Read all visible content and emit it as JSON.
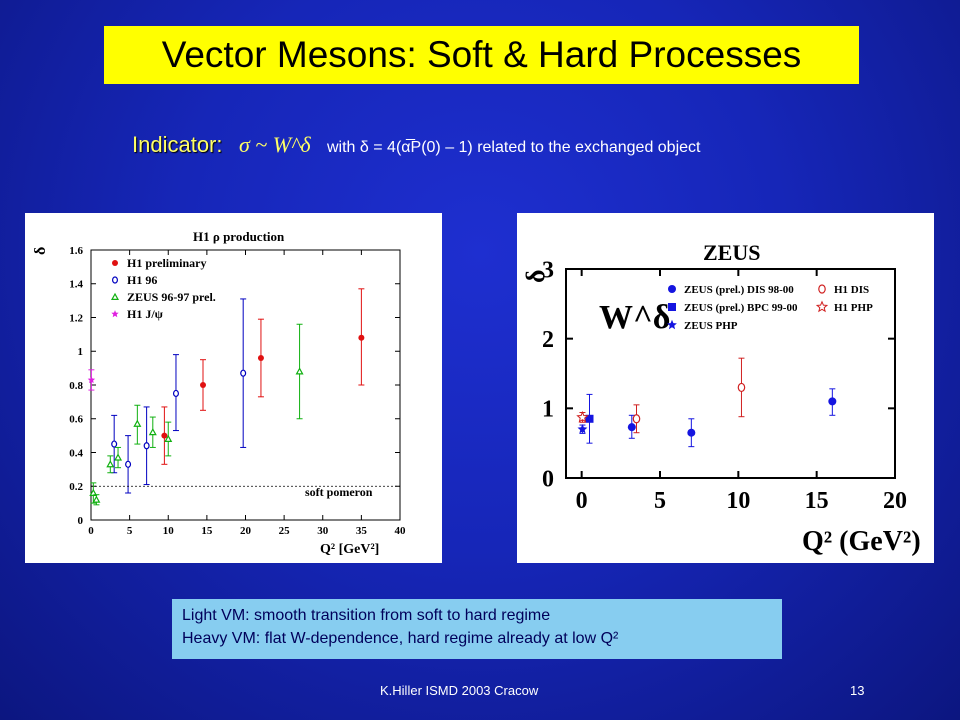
{
  "slide": {
    "title": "Vector Mesons: Soft & Hard Processes",
    "indicator_label": "Indicator:",
    "indicator_formula": "σ ~ W^δ",
    "indicator_text": "with δ = 4(α̅P(0) – 1) related to the exchanged object",
    "note_line1": "Light   VM:  smooth transition from soft to hard regime",
    "note_line2": "Heavy VM:  flat W-dependence, hard regime already at low Q²",
    "footer": "K.Hiller  ISMD 2003   Cracow",
    "page_number": "13"
  },
  "chart_data": [
    {
      "type": "scatter",
      "title": "H1 ρ production",
      "xlabel": "Q² [GeV²]",
      "ylabel": "δ",
      "xlim": [
        0,
        40
      ],
      "ylim": [
        0,
        1.6
      ],
      "x_ticks": [
        "0",
        "5",
        "10",
        "15",
        "20",
        "25",
        "30",
        "35",
        "40"
      ],
      "y_ticks": [
        "0",
        "0.2",
        "0.4",
        "0.6",
        "0.8",
        "1",
        "1.2",
        "1.4",
        "1.6"
      ],
      "annotation": "soft pomeron",
      "reference_line_y": 0.2,
      "series": [
        {
          "name": "H1 preliminary",
          "marker": "filled-circle",
          "color": "#e01010",
          "points": [
            {
              "x": 9.5,
              "y": 0.5,
              "lo": 0.33,
              "hi": 0.67
            },
            {
              "x": 14.5,
              "y": 0.8,
              "lo": 0.65,
              "hi": 0.95
            },
            {
              "x": 22,
              "y": 0.96,
              "lo": 0.73,
              "hi": 1.19
            },
            {
              "x": 35,
              "y": 1.08,
              "lo": 0.8,
              "hi": 1.37
            }
          ]
        },
        {
          "name": "H1 96",
          "marker": "open-circle",
          "color": "#0000c0",
          "points": [
            {
              "x": 3,
              "y": 0.45,
              "lo": 0.28,
              "hi": 0.62
            },
            {
              "x": 4.8,
              "y": 0.33,
              "lo": 0.16,
              "hi": 0.5
            },
            {
              "x": 7.2,
              "y": 0.44,
              "lo": 0.21,
              "hi": 0.67
            },
            {
              "x": 11,
              "y": 0.75,
              "lo": 0.53,
              "hi": 0.98
            },
            {
              "x": 19.7,
              "y": 0.87,
              "lo": 0.43,
              "hi": 1.31
            }
          ]
        },
        {
          "name": "ZEUS 96-97 prel.",
          "marker": "open-triangle",
          "color": "#10b010",
          "points": [
            {
              "x": 0.3,
              "y": 0.16,
              "lo": 0.1,
              "hi": 0.22
            },
            {
              "x": 0.7,
              "y": 0.12,
              "lo": 0.09,
              "hi": 0.15
            },
            {
              "x": 2.5,
              "y": 0.33,
              "lo": 0.28,
              "hi": 0.38
            },
            {
              "x": 3.5,
              "y": 0.37,
              "lo": 0.31,
              "hi": 0.43
            },
            {
              "x": 6,
              "y": 0.57,
              "lo": 0.45,
              "hi": 0.68
            },
            {
              "x": 8,
              "y": 0.52,
              "lo": 0.43,
              "hi": 0.61
            },
            {
              "x": 10,
              "y": 0.48,
              "lo": 0.38,
              "hi": 0.58
            },
            {
              "x": 27,
              "y": 0.88,
              "lo": 0.6,
              "hi": 1.16
            }
          ]
        },
        {
          "name": "H1 J/ψ",
          "marker": "star",
          "color": "#e020e0",
          "points": [
            {
              "x": 0.05,
              "y": 0.83,
              "lo": 0.77,
              "hi": 0.89
            }
          ]
        }
      ]
    },
    {
      "type": "scatter",
      "title": "ZEUS",
      "xlabel": "Q² (GeV²)",
      "ylabel": "δ",
      "xlim": [
        -1,
        20
      ],
      "ylim": [
        0,
        3
      ],
      "x_ticks": [
        "0",
        "5",
        "10",
        "15",
        "20"
      ],
      "y_ticks": [
        "0",
        "1",
        "2",
        "3"
      ],
      "annotation": "W^δ",
      "series": [
        {
          "name": "ZEUS (prel.) DIS 98-00",
          "marker": "filled-circle",
          "color": "#1515e0",
          "points": [
            {
              "x": 3.2,
              "y": 0.73,
              "lo": 0.57,
              "hi": 0.9
            },
            {
              "x": 7,
              "y": 0.65,
              "lo": 0.45,
              "hi": 0.85
            },
            {
              "x": 16,
              "y": 1.1,
              "lo": 0.9,
              "hi": 1.28
            }
          ]
        },
        {
          "name": "ZEUS (prel.) BPC 99-00",
          "marker": "filled-square",
          "color": "#1515e0",
          "points": [
            {
              "x": 0.5,
              "y": 0.85,
              "lo": 0.5,
              "hi": 1.2
            }
          ]
        },
        {
          "name": "ZEUS PHP",
          "marker": "star",
          "color": "#1515e0",
          "points": [
            {
              "x": 0.05,
              "y": 0.7,
              "lo": 0.64,
              "hi": 0.76
            }
          ]
        },
        {
          "name": "H1 DIS",
          "marker": "open-circle",
          "color": "#d02020",
          "points": [
            {
              "x": 3.5,
              "y": 0.85,
              "lo": 0.65,
              "hi": 1.05
            },
            {
              "x": 10.2,
              "y": 1.3,
              "lo": 0.88,
              "hi": 1.72
            }
          ]
        },
        {
          "name": "H1 PHP",
          "marker": "open-star",
          "color": "#d02020",
          "points": [
            {
              "x": 0.05,
              "y": 0.87,
              "lo": 0.8,
              "hi": 0.94
            }
          ]
        }
      ]
    }
  ]
}
